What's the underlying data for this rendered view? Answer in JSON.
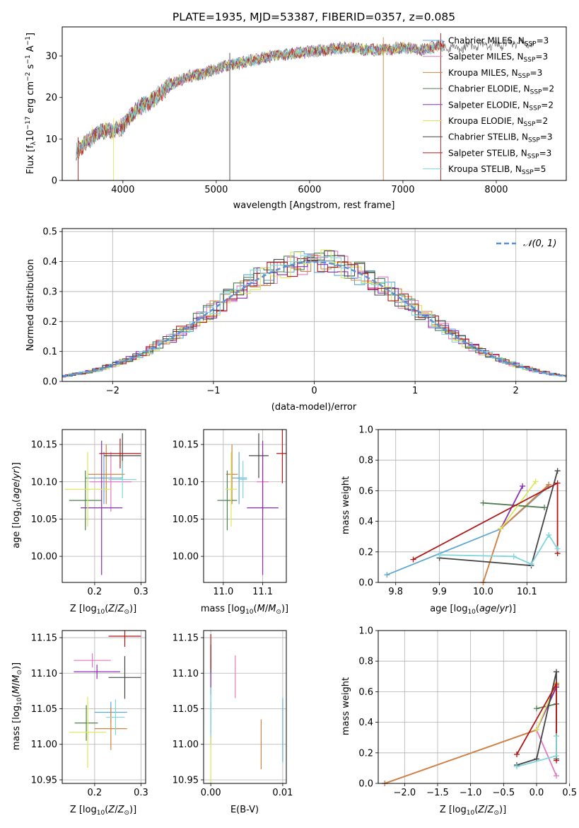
{
  "colors": [
    "#5fa8d3",
    "#e377c2",
    "#d2843d",
    "#4f7f4f",
    "#8c2bb5",
    "#dbe85a",
    "#444444",
    "#b01818",
    "#7fd6dc"
  ],
  "chart_data": [
    {
      "type": "line",
      "title": "PLATE=1935, MJD=53387, FIBERID=0357, z=0.085",
      "xlabel": "wavelength [Angstrom, rest frame]",
      "ylabel": "Flux [fλ10⁻¹⁷ erg cm⁻² s⁻¹ A⁻¹]",
      "xlim": [
        3350,
        8750
      ],
      "ylim": [
        0,
        37
      ],
      "xticks": [
        4000,
        5000,
        6000,
        7000,
        8000
      ],
      "yticks": [
        0,
        10,
        20,
        30
      ],
      "grid": false,
      "legend_position": "top-right",
      "legend": [
        {
          "name": "Chabrier MILES, N_SSP=3",
          "base": "Chabrier MILES, N",
          "sub": "SSP",
          "tail": "=3"
        },
        {
          "name": "Salpeter MILES, N_SSP=3",
          "base": "Salpeter MILES, N",
          "sub": "SSP",
          "tail": "=3"
        },
        {
          "name": "Kroupa MILES, N_SSP=3",
          "base": "Kroupa MILES, N",
          "sub": "SSP",
          "tail": "=3"
        },
        {
          "name": "Chabrier ELODIE, N_SSP=2",
          "base": "Chabrier ELODIE, N",
          "sub": "SSP",
          "tail": "=2"
        },
        {
          "name": "Salpeter ELODIE, N_SSP=2",
          "base": "Salpeter ELODIE, N",
          "sub": "SSP",
          "tail": "=2"
        },
        {
          "name": "Kroupa ELODIE, N_SSP=2",
          "base": "Kroupa ELODIE, N",
          "sub": "SSP",
          "tail": "=2"
        },
        {
          "name": "Chabrier STELIB, N_SSP=3",
          "base": "Chabrier STELIB, N",
          "sub": "SSP",
          "tail": "=3"
        },
        {
          "name": "Salpeter STELIB, N_SSP=3",
          "base": "Salpeter STELIB, N",
          "sub": "SSP",
          "tail": "=3"
        },
        {
          "name": "Kroupa STELIB, N_SSP=5",
          "base": "Kroupa STELIB, N",
          "sub": "SSP",
          "tail": "=5"
        }
      ],
      "spectrum_envelope": {
        "x": [
          3500,
          3600,
          3700,
          3800,
          3900,
          4000,
          4100,
          4200,
          4300,
          4400,
          4500,
          4600,
          4700,
          4800,
          4900,
          5000,
          5200,
          5400,
          5600,
          5800,
          6000,
          6200,
          6400,
          6600,
          6800,
          7000,
          7200,
          7400,
          7600,
          7800,
          8000,
          8200,
          8400
        ],
        "y": [
          7,
          9,
          11,
          12,
          12,
          13,
          16,
          18,
          19,
          21,
          23,
          24,
          25,
          25.5,
          26,
          27,
          28,
          29,
          30,
          30.5,
          31,
          31.5,
          32,
          31.5,
          31.5,
          32,
          31.5,
          32.5,
          32,
          32.5,
          32.5,
          33,
          33
        ]
      }
    },
    {
      "type": "bar",
      "xlabel": "(data-model)/error",
      "ylabel": "Normed distribution",
      "xlim": [
        -2.5,
        2.5
      ],
      "ylim": [
        0,
        0.51
      ],
      "xticks": [
        -2,
        -1,
        0,
        1,
        2
      ],
      "yticks": [
        0.0,
        0.1,
        0.2,
        0.3,
        0.4,
        0.5
      ],
      "grid": true,
      "legend": [
        {
          "name": "𝒩(0, 1)"
        }
      ],
      "legend_position": "top-right",
      "normal_curve": {
        "mean": 0,
        "sigma": 1
      }
    },
    {
      "type": "scatter",
      "xlabel": "Z [log₁₀(Z/Z⊙)]",
      "ylabel": "age  [log₁₀(age/yr)]",
      "xlim": [
        0.13,
        0.31
      ],
      "ylim": [
        9.965,
        10.17
      ],
      "xticks": [
        0.2,
        0.3
      ],
      "yticks": [
        10.0,
        10.05,
        10.1,
        10.15
      ],
      "grid": true,
      "points": [
        {
          "x": 0.22,
          "y": 10.105,
          "xerr": 0.04,
          "yerr": 0.035
        },
        {
          "x": 0.235,
          "y": 10.1,
          "xerr": 0.045,
          "yerr": 0.04
        },
        {
          "x": 0.225,
          "y": 10.11,
          "xerr": 0.04,
          "yerr": 0.04
        },
        {
          "x": 0.18,
          "y": 10.075,
          "xerr": 0.035,
          "yerr": 0.04
        },
        {
          "x": 0.215,
          "y": 10.065,
          "xerr": 0.045,
          "yerr": 0.09
        },
        {
          "x": 0.185,
          "y": 10.09,
          "xerr": 0.05,
          "yerr": 0.05
        },
        {
          "x": 0.26,
          "y": 10.135,
          "xerr": 0.04,
          "yerr": 0.03
        },
        {
          "x": 0.255,
          "y": 10.138,
          "xerr": 0.045,
          "yerr": 0.02
        },
        {
          "x": 0.26,
          "y": 10.103,
          "xerr": 0.03,
          "yerr": 0.025
        }
      ]
    },
    {
      "type": "scatter",
      "xlabel": "mass [log₁₀(M/M⊙)]",
      "ylabel": "",
      "xlim": [
        10.95,
        11.16
      ],
      "ylim": [
        9.965,
        10.17
      ],
      "xticks": [
        11.0,
        11.1
      ],
      "yticks": [
        10.0,
        10.05,
        10.1,
        10.15
      ],
      "grid": true,
      "points": [
        {
          "x": 11.04,
          "y": 10.105,
          "xerr": 0.02,
          "yerr": 0.035
        },
        {
          "x": 11.1,
          "y": 10.1,
          "xerr": 0.015,
          "yerr": 0.04
        },
        {
          "x": 11.022,
          "y": 10.11,
          "xerr": 0.015,
          "yerr": 0.04
        },
        {
          "x": 11.01,
          "y": 10.075,
          "xerr": 0.025,
          "yerr": 0.04
        },
        {
          "x": 11.1,
          "y": 10.065,
          "xerr": 0.04,
          "yerr": 0.09
        },
        {
          "x": 11.02,
          "y": 10.09,
          "xerr": 0.015,
          "yerr": 0.05
        },
        {
          "x": 11.09,
          "y": 10.135,
          "xerr": 0.025,
          "yerr": 0.03
        },
        {
          "x": 11.15,
          "y": 10.138,
          "xerr": 0.015,
          "yerr": 0.04
        },
        {
          "x": 11.05,
          "y": 10.103,
          "xerr": 0.01,
          "yerr": 0.025
        }
      ]
    },
    {
      "type": "line",
      "xlabel": "age  [log₁₀(age/yr)]",
      "ylabel": "mass weight",
      "xlim": [
        9.76,
        10.19
      ],
      "ylim": [
        0,
        1.0
      ],
      "xticks": [
        9.8,
        9.9,
        10.0,
        10.1
      ],
      "yticks": [
        0.0,
        0.2,
        0.4,
        0.6,
        0.8,
        1.0
      ],
      "grid": true,
      "series": [
        {
          "x": [
            9.78,
            10.04,
            10.15
          ],
          "y": [
            0.05,
            0.35,
            0.63
          ]
        },
        {
          "x": [
            10.0,
            10.04,
            10.15
          ],
          "y": [
            0.0,
            0.35,
            0.64
          ]
        },
        {
          "x": [
            10.0,
            10.04,
            10.15
          ],
          "y": [
            0.0,
            0.35,
            0.64
          ]
        },
        {
          "x": [
            10.0,
            10.14
          ],
          "y": [
            0.52,
            0.49
          ]
        },
        {
          "x": [
            10.04,
            10.09
          ],
          "y": [
            0.35,
            0.63
          ]
        },
        {
          "x": [
            10.04,
            10.12
          ],
          "y": [
            0.35,
            0.66
          ]
        },
        {
          "x": [
            9.9,
            10.11,
            10.17
          ],
          "y": [
            0.16,
            0.11,
            0.73
          ]
        },
        {
          "x": [
            9.84,
            10.17,
            10.17
          ],
          "y": [
            0.15,
            0.65,
            0.19
          ]
        },
        {
          "x": [
            9.9,
            10.07,
            10.11,
            10.15,
            10.17
          ],
          "y": [
            0.18,
            0.17,
            0.12,
            0.31,
            0.22
          ]
        }
      ]
    },
    {
      "type": "scatter",
      "xlabel": "Z [log₁₀(Z/Z⊙)]",
      "ylabel": "mass [log₁₀(M/M⊙)]",
      "xlim": [
        0.13,
        0.31
      ],
      "ylim": [
        10.945,
        11.16
      ],
      "xticks": [
        0.2,
        0.3
      ],
      "yticks": [
        10.95,
        11.0,
        11.05,
        11.1,
        11.15
      ],
      "grid": true,
      "points": [
        {
          "x": 0.235,
          "y": 11.045,
          "xerr": 0.035,
          "yerr": 0.015
        },
        {
          "x": 0.195,
          "y": 11.118,
          "xerr": 0.04,
          "yerr": 0.01
        },
        {
          "x": 0.235,
          "y": 11.022,
          "xerr": 0.035,
          "yerr": 0.03
        },
        {
          "x": 0.182,
          "y": 11.03,
          "xerr": 0.025,
          "yerr": 0.025
        },
        {
          "x": 0.205,
          "y": 11.102,
          "xerr": 0.05,
          "yerr": 0.01
        },
        {
          "x": 0.185,
          "y": 11.017,
          "xerr": 0.04,
          "yerr": 0.05
        },
        {
          "x": 0.265,
          "y": 11.094,
          "xerr": 0.035,
          "yerr": 0.03
        },
        {
          "x": 0.265,
          "y": 11.152,
          "xerr": 0.035,
          "yerr": 0.015
        },
        {
          "x": 0.245,
          "y": 11.038,
          "xerr": 0.02,
          "yerr": 0.025
        }
      ]
    },
    {
      "type": "scatter",
      "xlabel": "E(B-V)",
      "ylabel": "",
      "xlim": [
        -0.001,
        0.0105
      ],
      "ylim": [
        10.945,
        11.16
      ],
      "xticks": [
        0.0,
        0.01
      ],
      "yticks": [
        10.95,
        11.0,
        11.05,
        11.1,
        11.15
      ],
      "grid": true,
      "points": [
        {
          "x": 0.0,
          "y": 11.1,
          "yerr": 0.04
        },
        {
          "x": 0.0034,
          "y": 11.095,
          "yerr": 0.03
        },
        {
          "x": 0.007,
          "y": 11.0,
          "yerr": 0.035
        },
        {
          "x": 0.0,
          "y": 11.03,
          "yerr": 0.03
        },
        {
          "x": 0.0,
          "y": 11.1,
          "yerr": 0.02
        },
        {
          "x": 0.0,
          "y": 10.98,
          "yerr": 0.035
        },
        {
          "x": 0.0,
          "y": 11.12,
          "yerr": 0.02
        },
        {
          "x": 0.0,
          "y": 11.13,
          "yerr": 0.025
        },
        {
          "x": 0.0,
          "y": 11.04,
          "yerr": 0.03
        },
        {
          "x": 0.01,
          "y": 11.02,
          "yerr": 0.045
        }
      ]
    },
    {
      "type": "line",
      "xlabel": "Z [log₁₀(Z/Z⊙)]",
      "ylabel": "mass weight",
      "xlim": [
        -2.4,
        0.45
      ],
      "ylim": [
        0,
        1.0
      ],
      "xticks": [
        -2.0,
        -1.5,
        -1.0,
        -0.5,
        0.0,
        0.5
      ],
      "yticks": [
        0.0,
        0.2,
        0.4,
        0.6,
        0.8,
        1.0
      ],
      "grid": true,
      "series": [
        {
          "x": [
            -2.3,
            0.0,
            0.3
          ],
          "y": [
            0.0,
            0.35,
            0.63
          ]
        },
        {
          "x": [
            -2.3,
            0.0,
            0.3
          ],
          "y": [
            0.0,
            0.35,
            0.05
          ]
        },
        {
          "x": [
            -2.3,
            0.0,
            0.3
          ],
          "y": [
            0.0,
            0.35,
            0.64
          ]
        },
        {
          "x": [
            0.0,
            0.3
          ],
          "y": [
            0.49,
            0.52
          ]
        },
        {
          "x": [
            0.0,
            0.3
          ],
          "y": [
            0.35,
            0.63
          ]
        },
        {
          "x": [
            0.0,
            0.3
          ],
          "y": [
            0.35,
            0.66
          ]
        },
        {
          "x": [
            -0.3,
            0.0,
            0.3,
            0.3
          ],
          "y": [
            0.12,
            0.16,
            0.73,
            0.16
          ]
        },
        {
          "x": [
            -0.3,
            0.3,
            0.3
          ],
          "y": [
            0.19,
            0.65,
            0.15
          ]
        },
        {
          "x": [
            -0.3,
            0.3,
            0.3
          ],
          "y": [
            0.11,
            0.18,
            0.31
          ]
        }
      ]
    }
  ]
}
